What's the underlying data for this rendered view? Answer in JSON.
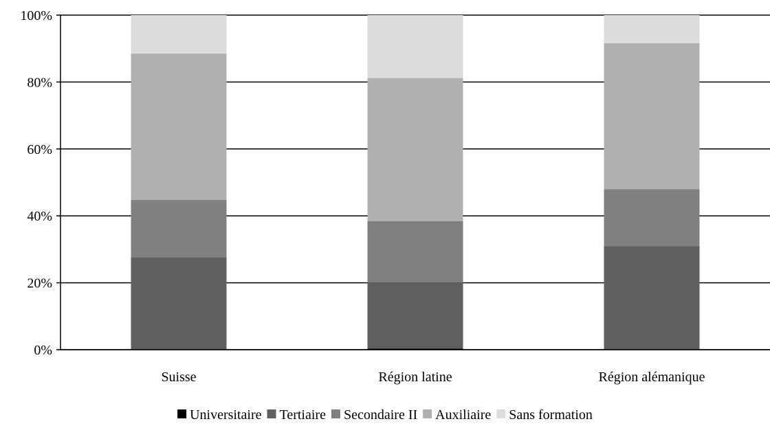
{
  "chart_data": {
    "type": "bar",
    "stacked": true,
    "percent": true,
    "categories": [
      "Suisse",
      "Région latine",
      "Région alémanique"
    ],
    "series": [
      {
        "name": "Universitaire",
        "color": "#000000",
        "values": [
          0.1,
          0.3,
          0.1
        ]
      },
      {
        "name": "Tertiaire",
        "color": "#606060",
        "values": [
          27.5,
          19.8,
          30.8
        ]
      },
      {
        "name": "Secondaire II",
        "color": "#808080",
        "values": [
          17.2,
          18.3,
          17.1
        ]
      },
      {
        "name": "Auxiliaire",
        "color": "#b0b0b0",
        "values": [
          43.7,
          42.8,
          43.6
        ]
      },
      {
        "name": "Sans formation",
        "color": "#dcdcdc",
        "values": [
          11.5,
          18.8,
          8.4
        ]
      }
    ],
    "yticks": [
      "0%",
      "20%",
      "40%",
      "60%",
      "80%",
      "100%"
    ],
    "ylim": [
      0,
      100
    ],
    "grid": true,
    "legend": "bottom",
    "title": "",
    "xlabel": "",
    "ylabel": ""
  }
}
